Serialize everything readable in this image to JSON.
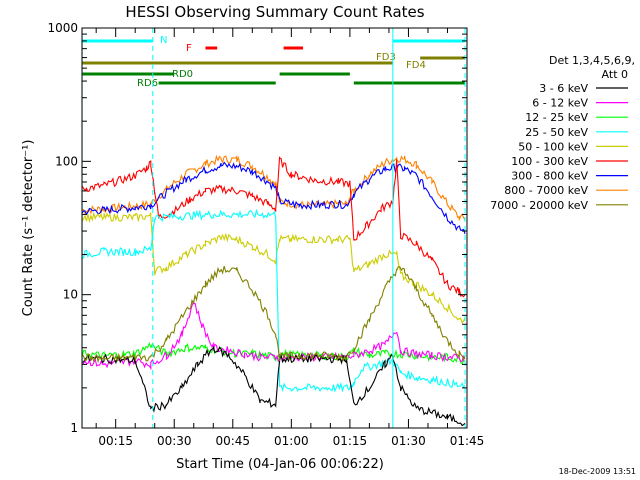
{
  "chart_data": {
    "type": "line",
    "title": "HESSI Observing Summary Count Rates",
    "xlabel": "Start Time (04-Jan-06 00:06:22)",
    "ylabel": "Count Rate (s⁻¹ detector⁻¹)",
    "ylog": true,
    "ylim": [
      1,
      1000
    ],
    "xlim_min": [
      6.37,
      105
    ],
    "yticks": [
      {
        "v": 1,
        "label": "1"
      },
      {
        "v": 10,
        "label": "10"
      },
      {
        "v": 100,
        "label": "100"
      },
      {
        "v": 1000,
        "label": "1000"
      }
    ],
    "xticks": [
      {
        "v": 15,
        "label": "00:15"
      },
      {
        "v": 30,
        "label": "00:30"
      },
      {
        "v": 45,
        "label": "00:45"
      },
      {
        "v": 60,
        "label": "01:00"
      },
      {
        "v": 75,
        "label": "01:15"
      },
      {
        "v": 90,
        "label": "01:30"
      },
      {
        "v": 105,
        "label": "01:45"
      }
    ],
    "legend": {
      "placement": "right",
      "title_line1": "Det 1,3,4,5,6,9,",
      "title_line2": "Att 0",
      "entries": [
        {
          "label": "3 - 6 keV",
          "color": "#000000"
        },
        {
          "label": "6 - 12 keV",
          "color": "#ff00ff"
        },
        {
          "label": "12 - 25 keV",
          "color": "#00ff00"
        },
        {
          "label": "25 - 50 keV",
          "color": "#00ffff"
        },
        {
          "label": "50 - 100 keV",
          "color": "#cccc00"
        },
        {
          "label": "100 - 300 keV",
          "color": "#ff0000"
        },
        {
          "label": "300 - 800 keV",
          "color": "#0000ff"
        },
        {
          "label": "800 - 7000 keV",
          "color": "#ff8000"
        },
        {
          "label": "7000 - 20000 keV",
          "color": "#808000"
        }
      ]
    },
    "series": [
      {
        "band": "800 - 7000 keV",
        "color": "#ff8000",
        "points": [
          [
            6.4,
            43
          ],
          [
            12,
            44
          ],
          [
            20,
            46
          ],
          [
            24,
            48
          ],
          [
            28,
            62
          ],
          [
            33,
            80
          ],
          [
            38,
            96
          ],
          [
            42,
            104
          ],
          [
            46,
            103
          ],
          [
            50,
            92
          ],
          [
            53,
            80
          ],
          [
            56,
            68
          ],
          [
            57,
            50
          ],
          [
            62,
            47
          ],
          [
            68,
            47
          ],
          [
            72,
            48
          ],
          [
            74,
            48
          ],
          [
            76,
            60
          ],
          [
            80,
            80
          ],
          [
            84,
            98
          ],
          [
            87,
            106
          ],
          [
            89,
            104
          ],
          [
            92,
            95
          ],
          [
            96,
            70
          ],
          [
            100,
            48
          ],
          [
            103,
            38
          ],
          [
            104.5,
            37
          ]
        ]
      },
      {
        "band": "300 - 800 keV",
        "color": "#0000ff",
        "points": [
          [
            6.4,
            42
          ],
          [
            12,
            43
          ],
          [
            20,
            45
          ],
          [
            24,
            47
          ],
          [
            28,
            58
          ],
          [
            33,
            73
          ],
          [
            38,
            86
          ],
          [
            42,
            93
          ],
          [
            46,
            92
          ],
          [
            50,
            84
          ],
          [
            53,
            74
          ],
          [
            56,
            63
          ],
          [
            57,
            50
          ],
          [
            62,
            47
          ],
          [
            68,
            47
          ],
          [
            72,
            48
          ],
          [
            74,
            47
          ],
          [
            76,
            57
          ],
          [
            80,
            74
          ],
          [
            84,
            88
          ],
          [
            87,
            90
          ],
          [
            89,
            88
          ],
          [
            92,
            78
          ],
          [
            96,
            55
          ],
          [
            100,
            38
          ],
          [
            103,
            31
          ],
          [
            104.5,
            30
          ]
        ]
      },
      {
        "band": "100 - 300 keV",
        "color": "#ff0000",
        "points": [
          [
            6.4,
            62
          ],
          [
            12,
            66
          ],
          [
            20,
            78
          ],
          [
            23,
            90
          ],
          [
            24,
            98
          ],
          [
            25,
            60
          ],
          [
            26,
            38
          ],
          [
            30,
            42
          ],
          [
            34,
            52
          ],
          [
            38,
            60
          ],
          [
            42,
            62
          ],
          [
            46,
            60
          ],
          [
            50,
            55
          ],
          [
            54,
            48
          ],
          [
            56,
            44
          ],
          [
            57,
            102
          ],
          [
            60,
            80
          ],
          [
            66,
            72
          ],
          [
            72,
            70
          ],
          [
            75,
            68
          ],
          [
            76,
            26
          ],
          [
            79,
            32
          ],
          [
            83,
            44
          ],
          [
            86,
            50
          ],
          [
            87,
            100
          ],
          [
            88,
            28
          ],
          [
            92,
            24
          ],
          [
            96,
            18
          ],
          [
            100,
            12
          ],
          [
            103,
            10.5
          ],
          [
            104.5,
            10
          ]
        ]
      },
      {
        "band": "50 - 100 keV",
        "color": "#cccc00",
        "points": [
          [
            6.4,
            38
          ],
          [
            12,
            38
          ],
          [
            20,
            38
          ],
          [
            24,
            39
          ],
          [
            25,
            15
          ],
          [
            28,
            16
          ],
          [
            33,
            20
          ],
          [
            38,
            24
          ],
          [
            42,
            27
          ],
          [
            46,
            26
          ],
          [
            50,
            23
          ],
          [
            54,
            20
          ],
          [
            56,
            18
          ],
          [
            57,
            26
          ],
          [
            60,
            26
          ],
          [
            68,
            26
          ],
          [
            72,
            26
          ],
          [
            75,
            26
          ],
          [
            76,
            15
          ],
          [
            80,
            17
          ],
          [
            84,
            20
          ],
          [
            87,
            20
          ],
          [
            88,
            14
          ],
          [
            92,
            12
          ],
          [
            96,
            10
          ],
          [
            100,
            8
          ],
          [
            103,
            6.5
          ],
          [
            104.5,
            6.5
          ]
        ]
      },
      {
        "band": "25 - 50 keV",
        "color": "#00ffff",
        "points": [
          [
            6.4,
            20
          ],
          [
            12,
            21
          ],
          [
            20,
            21
          ],
          [
            24,
            22
          ],
          [
            25,
            38
          ],
          [
            40,
            40
          ],
          [
            56,
            40
          ],
          [
            57,
            2
          ],
          [
            75,
            2
          ],
          [
            76,
            2.2
          ],
          [
            78,
            2.8
          ],
          [
            86,
            3.2
          ],
          [
            88,
            2.6
          ],
          [
            92,
            2.4
          ],
          [
            96,
            2.3
          ],
          [
            100,
            2.2
          ],
          [
            104.5,
            2
          ]
        ]
      },
      {
        "band": "12 - 25 keV",
        "color": "#00ff00",
        "points": [
          [
            6.4,
            3.6
          ],
          [
            12,
            3.5
          ],
          [
            20,
            3.6
          ],
          [
            24,
            4.2
          ],
          [
            28,
            3.6
          ],
          [
            33,
            4
          ],
          [
            38,
            4
          ],
          [
            42,
            3.8
          ],
          [
            46,
            3.6
          ],
          [
            50,
            3.6
          ],
          [
            56,
            3.4
          ],
          [
            57,
            3.6
          ],
          [
            62,
            3.5
          ],
          [
            68,
            3.5
          ],
          [
            74,
            3.4
          ],
          [
            76,
            3.8
          ],
          [
            80,
            3.5
          ],
          [
            84,
            3.6
          ],
          [
            88,
            3.6
          ],
          [
            92,
            3.5
          ],
          [
            96,
            3.4
          ],
          [
            100,
            3.4
          ],
          [
            104.5,
            3.2
          ]
        ]
      },
      {
        "band": "6 - 12 keV",
        "color": "#ff00ff",
        "points": [
          [
            6.4,
            3.2
          ],
          [
            12,
            3
          ],
          [
            20,
            3.2
          ],
          [
            24,
            3
          ],
          [
            28,
            3.5
          ],
          [
            32,
            5
          ],
          [
            35,
            9
          ],
          [
            37,
            6
          ],
          [
            40,
            4
          ],
          [
            44,
            3.8
          ],
          [
            48,
            3.6
          ],
          [
            52,
            3.4
          ],
          [
            56,
            3.4
          ],
          [
            57,
            3.4
          ],
          [
            68,
            3.4
          ],
          [
            74,
            3.4
          ],
          [
            76,
            3.5
          ],
          [
            80,
            3.8
          ],
          [
            84,
            4.2
          ],
          [
            87,
            5.5
          ],
          [
            88,
            3.8
          ],
          [
            92,
            3.6
          ],
          [
            96,
            3.5
          ],
          [
            100,
            3.4
          ],
          [
            104.5,
            3.3
          ]
        ]
      },
      {
        "band": "3 - 6 keV",
        "color": "#000000",
        "points": [
          [
            6.4,
            3.3
          ],
          [
            12,
            3.3
          ],
          [
            20,
            3.2
          ],
          [
            24,
            1.4
          ],
          [
            28,
            1.5
          ],
          [
            32,
            2
          ],
          [
            36,
            3
          ],
          [
            40,
            4
          ],
          [
            44,
            3.5
          ],
          [
            48,
            2.5
          ],
          [
            52,
            1.6
          ],
          [
            56,
            1.5
          ],
          [
            57,
            3.3
          ],
          [
            68,
            3.3
          ],
          [
            74,
            3.3
          ],
          [
            76,
            1.5
          ],
          [
            80,
            2
          ],
          [
            84,
            3
          ],
          [
            86,
            3.5
          ],
          [
            88,
            2
          ],
          [
            92,
            1.4
          ],
          [
            96,
            1.3
          ],
          [
            100,
            1.2
          ],
          [
            104.5,
            1.1
          ]
        ]
      },
      {
        "band": "7000 - 20000 keV",
        "color": "#808000",
        "points": [
          [
            6.4,
            3.4
          ],
          [
            12,
            3.3
          ],
          [
            20,
            3.4
          ],
          [
            24,
            3.4
          ],
          [
            28,
            4.5
          ],
          [
            33,
            7.5
          ],
          [
            38,
            12
          ],
          [
            42,
            15.5
          ],
          [
            46,
            15
          ],
          [
            50,
            11
          ],
          [
            54,
            7
          ],
          [
            56,
            5
          ],
          [
            57,
            3.4
          ],
          [
            62,
            3.5
          ],
          [
            68,
            3.5
          ],
          [
            74,
            3.4
          ],
          [
            76,
            4
          ],
          [
            80,
            6.5
          ],
          [
            84,
            11
          ],
          [
            87,
            15.5
          ],
          [
            89,
            15
          ],
          [
            92,
            11
          ],
          [
            96,
            7
          ],
          [
            100,
            4.5
          ],
          [
            103,
            3.6
          ],
          [
            104.5,
            3.4
          ]
        ]
      }
    ],
    "flags": [
      {
        "label": "N",
        "color": "#00ffff",
        "segments": [
          [
            6.4,
            24.5
          ],
          [
            86,
            104.5
          ]
        ]
      },
      {
        "label": "F",
        "color": "#ff0000",
        "segments": [
          [
            38,
            41
          ],
          [
            58,
            63
          ]
        ]
      },
      {
        "label": "FD3",
        "color": "#808000",
        "segments": [
          [
            6.4,
            86
          ]
        ]
      },
      {
        "label": "FD4",
        "color": "#808000",
        "segments": [
          [
            93,
            104.5
          ]
        ]
      },
      {
        "label": "RD0",
        "color": "#008000",
        "segments": [
          [
            6.4,
            30
          ],
          [
            57,
            75
          ]
        ]
      },
      {
        "label": "RD6",
        "color": "#008000",
        "segments": [
          [
            26,
            56
          ],
          [
            76,
            104.5
          ]
        ]
      }
    ],
    "vlines": [
      {
        "x": 6.4,
        "color": "#00ffff",
        "style": "solid"
      },
      {
        "x": 24.5,
        "color": "#00ffff",
        "style": "dashed"
      },
      {
        "x": 86,
        "color": "#00ffff",
        "style": "solid"
      },
      {
        "x": 104.5,
        "color": "#00ffff",
        "style": "dashed"
      }
    ]
  },
  "timestamp": "18-Dec-2009 13:51"
}
